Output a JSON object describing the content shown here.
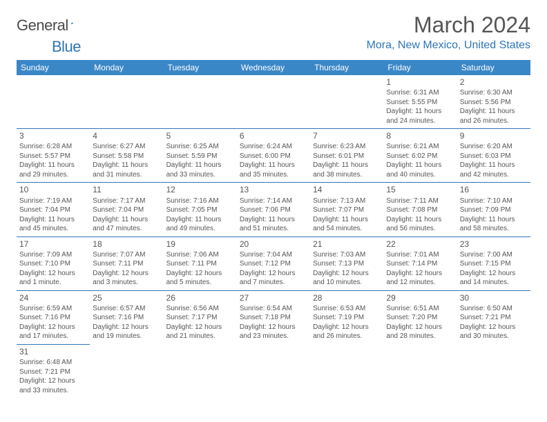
{
  "logo": {
    "text_general": "General",
    "text_blue": "Blue"
  },
  "title": "March 2024",
  "location": "Mora, New Mexico, United States",
  "colors": {
    "header_bg": "#3a87c7",
    "accent": "#2e75b6",
    "text": "#555555",
    "bg": "#ffffff"
  },
  "day_headers": [
    "Sunday",
    "Monday",
    "Tuesday",
    "Wednesday",
    "Thursday",
    "Friday",
    "Saturday"
  ],
  "weeks": [
    [
      null,
      null,
      null,
      null,
      null,
      {
        "n": "1",
        "sr": "6:31 AM",
        "ss": "5:55 PM",
        "dl": "11 hours and 24 minutes."
      },
      {
        "n": "2",
        "sr": "6:30 AM",
        "ss": "5:56 PM",
        "dl": "11 hours and 26 minutes."
      }
    ],
    [
      {
        "n": "3",
        "sr": "6:28 AM",
        "ss": "5:57 PM",
        "dl": "11 hours and 29 minutes."
      },
      {
        "n": "4",
        "sr": "6:27 AM",
        "ss": "5:58 PM",
        "dl": "11 hours and 31 minutes."
      },
      {
        "n": "5",
        "sr": "6:25 AM",
        "ss": "5:59 PM",
        "dl": "11 hours and 33 minutes."
      },
      {
        "n": "6",
        "sr": "6:24 AM",
        "ss": "6:00 PM",
        "dl": "11 hours and 35 minutes."
      },
      {
        "n": "7",
        "sr": "6:23 AM",
        "ss": "6:01 PM",
        "dl": "11 hours and 38 minutes."
      },
      {
        "n": "8",
        "sr": "6:21 AM",
        "ss": "6:02 PM",
        "dl": "11 hours and 40 minutes."
      },
      {
        "n": "9",
        "sr": "6:20 AM",
        "ss": "6:03 PM",
        "dl": "11 hours and 42 minutes."
      }
    ],
    [
      {
        "n": "10",
        "sr": "7:19 AM",
        "ss": "7:04 PM",
        "dl": "11 hours and 45 minutes."
      },
      {
        "n": "11",
        "sr": "7:17 AM",
        "ss": "7:04 PM",
        "dl": "11 hours and 47 minutes."
      },
      {
        "n": "12",
        "sr": "7:16 AM",
        "ss": "7:05 PM",
        "dl": "11 hours and 49 minutes."
      },
      {
        "n": "13",
        "sr": "7:14 AM",
        "ss": "7:06 PM",
        "dl": "11 hours and 51 minutes."
      },
      {
        "n": "14",
        "sr": "7:13 AM",
        "ss": "7:07 PM",
        "dl": "11 hours and 54 minutes."
      },
      {
        "n": "15",
        "sr": "7:11 AM",
        "ss": "7:08 PM",
        "dl": "11 hours and 56 minutes."
      },
      {
        "n": "16",
        "sr": "7:10 AM",
        "ss": "7:09 PM",
        "dl": "11 hours and 58 minutes."
      }
    ],
    [
      {
        "n": "17",
        "sr": "7:09 AM",
        "ss": "7:10 PM",
        "dl": "12 hours and 1 minute."
      },
      {
        "n": "18",
        "sr": "7:07 AM",
        "ss": "7:11 PM",
        "dl": "12 hours and 3 minutes."
      },
      {
        "n": "19",
        "sr": "7:06 AM",
        "ss": "7:11 PM",
        "dl": "12 hours and 5 minutes."
      },
      {
        "n": "20",
        "sr": "7:04 AM",
        "ss": "7:12 PM",
        "dl": "12 hours and 7 minutes."
      },
      {
        "n": "21",
        "sr": "7:03 AM",
        "ss": "7:13 PM",
        "dl": "12 hours and 10 minutes."
      },
      {
        "n": "22",
        "sr": "7:01 AM",
        "ss": "7:14 PM",
        "dl": "12 hours and 12 minutes."
      },
      {
        "n": "23",
        "sr": "7:00 AM",
        "ss": "7:15 PM",
        "dl": "12 hours and 14 minutes."
      }
    ],
    [
      {
        "n": "24",
        "sr": "6:59 AM",
        "ss": "7:16 PM",
        "dl": "12 hours and 17 minutes."
      },
      {
        "n": "25",
        "sr": "6:57 AM",
        "ss": "7:16 PM",
        "dl": "12 hours and 19 minutes."
      },
      {
        "n": "26",
        "sr": "6:56 AM",
        "ss": "7:17 PM",
        "dl": "12 hours and 21 minutes."
      },
      {
        "n": "27",
        "sr": "6:54 AM",
        "ss": "7:18 PM",
        "dl": "12 hours and 23 minutes."
      },
      {
        "n": "28",
        "sr": "6:53 AM",
        "ss": "7:19 PM",
        "dl": "12 hours and 26 minutes."
      },
      {
        "n": "29",
        "sr": "6:51 AM",
        "ss": "7:20 PM",
        "dl": "12 hours and 28 minutes."
      },
      {
        "n": "30",
        "sr": "6:50 AM",
        "ss": "7:21 PM",
        "dl": "12 hours and 30 minutes."
      }
    ],
    [
      {
        "n": "31",
        "sr": "6:48 AM",
        "ss": "7:21 PM",
        "dl": "12 hours and 33 minutes."
      },
      null,
      null,
      null,
      null,
      null,
      null
    ]
  ],
  "labels": {
    "sunrise": "Sunrise: ",
    "sunset": "Sunset: ",
    "daylight": "Daylight: "
  }
}
